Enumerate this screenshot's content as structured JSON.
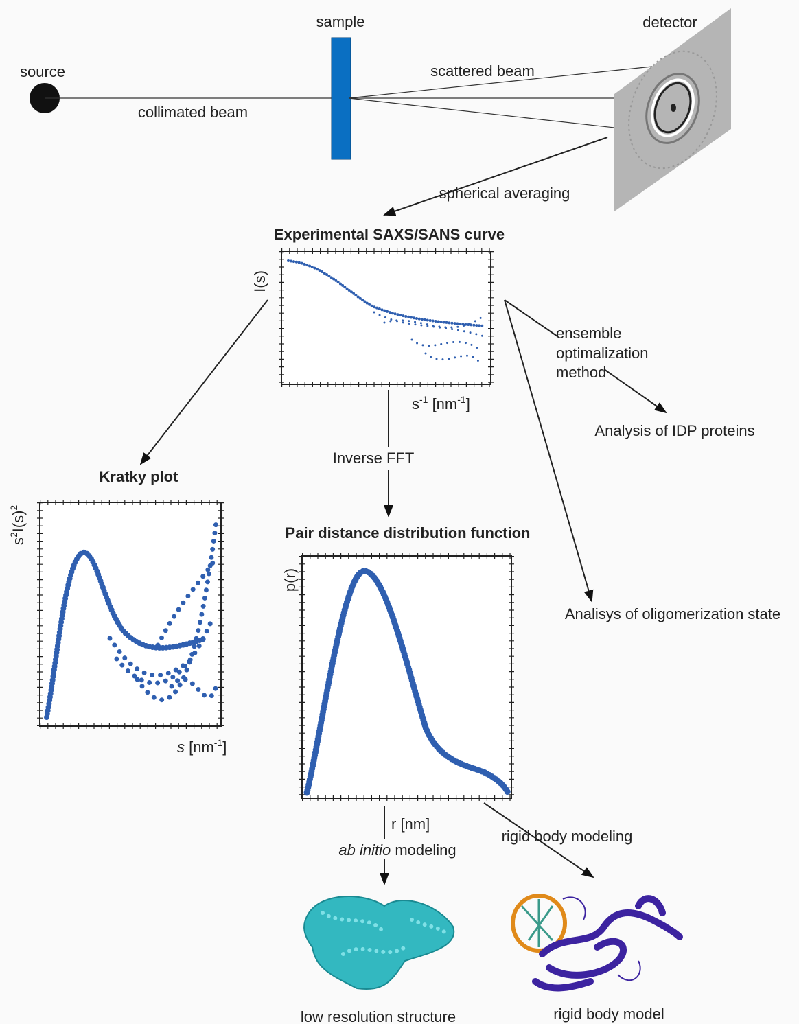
{
  "setup": {
    "source": "source",
    "sample": "sample",
    "detector": "detector",
    "collimated_beam": "collimated beam",
    "scattered_beam": "scattered beam",
    "spherical_averaging": "spherical averaging"
  },
  "experimental_curve": {
    "title": "Experimental SAXS/SANS curve",
    "y_label": "I(s)",
    "x_label": [
      "s",
      "-1",
      " [nm",
      "-1",
      "]"
    ]
  },
  "inverse_fft": "Inverse FFT",
  "kratky": {
    "title": "Kratky plot",
    "y_label": [
      "s",
      "2",
      "I(s)",
      "2"
    ],
    "x_label": [
      "s",
      " [nm",
      "-1",
      "]"
    ]
  },
  "pddf": {
    "title": "Pair distance distribution function",
    "y_label": "p(r)",
    "x_label": "r [nm]"
  },
  "ensemble": {
    "lines": [
      "ensemble",
      "optimalization",
      "method"
    ],
    "result": "Analysis of IDP proteins"
  },
  "oligomerization": "Analisys of oligomerization state",
  "ab_initio": {
    "label": [
      "ab initio",
      " modeling"
    ],
    "result": "low resolution structure"
  },
  "rigid_body": {
    "label": "rigid body modeling",
    "result": "rigid body model"
  }
}
